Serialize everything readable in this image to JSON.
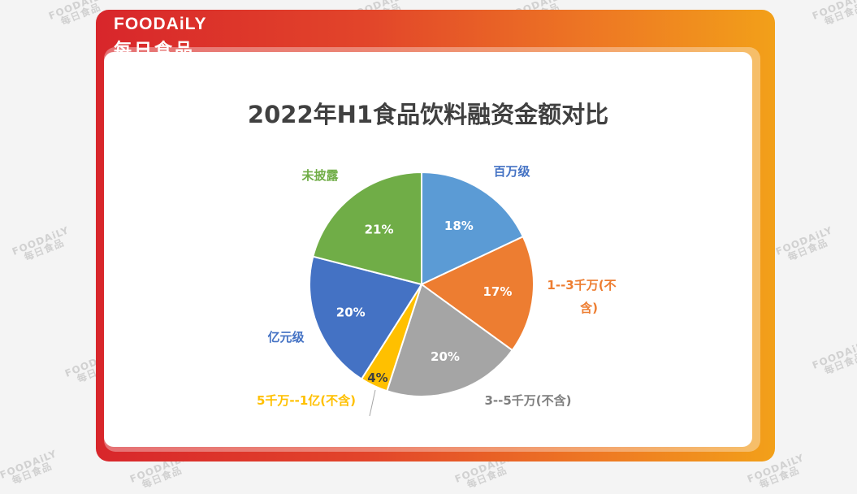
{
  "header": {
    "logo_en": "FOODAiLY",
    "logo_cn": "每日食品"
  },
  "watermark": {
    "en": "FOODAiLY",
    "cn": "每日食品"
  },
  "chart_data": {
    "type": "pie",
    "title": "2022年H1食品饮料融资金额对比",
    "slices": [
      {
        "name": "百万级",
        "value": 18,
        "label": "18%",
        "color": "#5b9bd5",
        "name_color": "#4472c4",
        "value_color": "#ffffff"
      },
      {
        "name": "1--3千万(不含)",
        "value": 17,
        "label": "17%",
        "color": "#ed7d31",
        "name_color": "#ed7d31",
        "value_color": "#ffffff"
      },
      {
        "name": "3--5千万(不含)",
        "value": 20,
        "label": "20%",
        "color": "#a5a5a5",
        "name_color": "#7f7f7f",
        "value_color": "#ffffff"
      },
      {
        "name": "5千万--1亿(不含)",
        "value": 4,
        "label": "4%",
        "color": "#ffc000",
        "name_color": "#ffc000",
        "value_color": "#404040"
      },
      {
        "name": "亿元级",
        "value": 20,
        "label": "20%",
        "color": "#4472c4",
        "name_color": "#4472c4",
        "value_color": "#ffffff"
      },
      {
        "name": "未披露",
        "value": 21,
        "label": "21%",
        "color": "#70ad47",
        "name_color": "#70ad47",
        "value_color": "#ffffff"
      }
    ]
  }
}
